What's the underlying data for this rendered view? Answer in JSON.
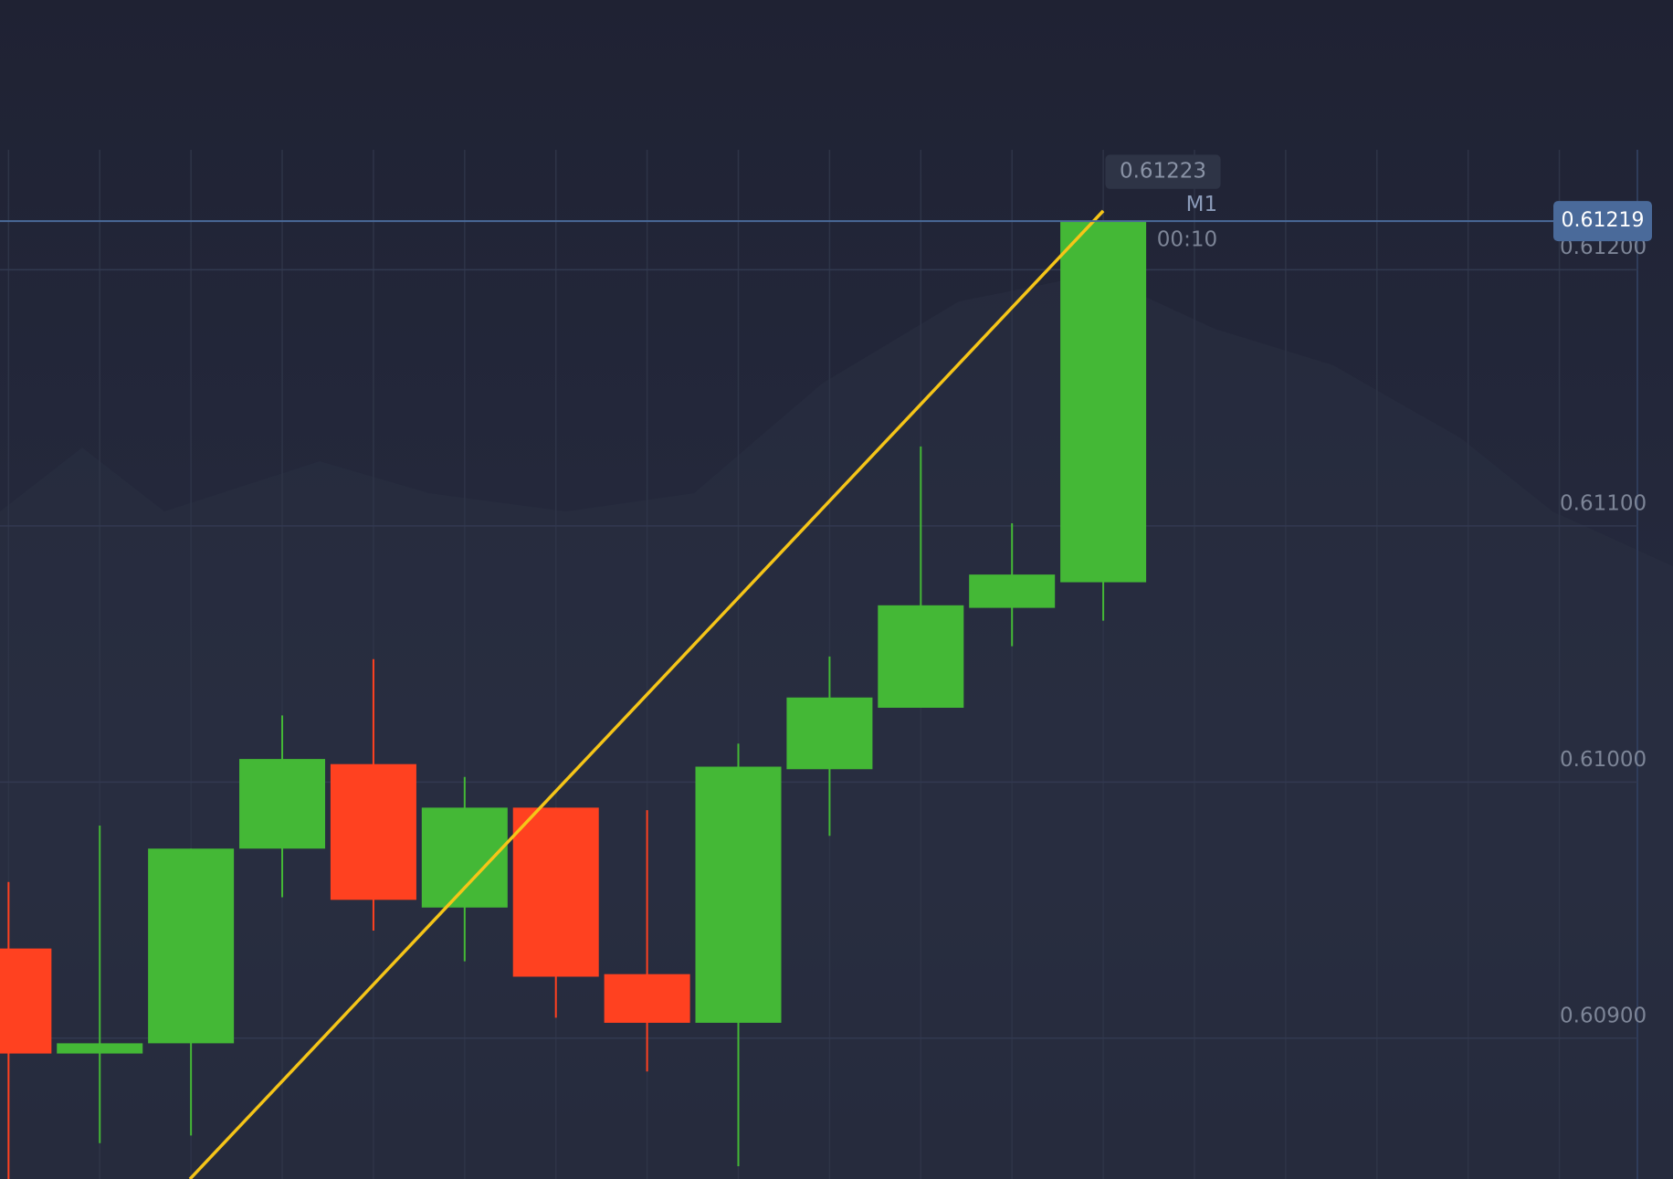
{
  "chart_data": {
    "type": "candlestick",
    "up_color": "#44b836",
    "down_color": "#ff4120",
    "open": [
      0.60935,
      0.60894,
      0.60898,
      0.60974,
      0.61007,
      0.60951,
      0.6099,
      0.60925,
      0.60906,
      0.61005,
      0.61029,
      0.61068,
      0.61078
    ],
    "high": [
      0.60961,
      0.60983,
      0.60974,
      0.61026,
      0.61048,
      0.61002,
      0.6099,
      0.60989,
      0.61015,
      0.61049,
      0.61131,
      0.61101,
      0.61219
    ],
    "low": [
      0.6084,
      0.60859,
      0.60862,
      0.60955,
      0.60942,
      0.6093,
      0.60908,
      0.60887,
      0.6085,
      0.60979,
      0.61029,
      0.61053,
      0.61063
    ],
    "close": [
      0.60894,
      0.60898,
      0.60974,
      0.61009,
      0.60954,
      0.6099,
      0.60924,
      0.60906,
      0.61006,
      0.61033,
      0.61069,
      0.61081,
      0.61219
    ],
    "ylim": [
      0.60845,
      0.61247
    ],
    "yticks": [
      {
        "value": 0.609,
        "label": "0.60900"
      },
      {
        "value": 0.61,
        "label": "0.61000"
      },
      {
        "value": 0.611,
        "label": "0.61100"
      },
      {
        "value": 0.612,
        "label": "0.61200"
      }
    ],
    "grid": true,
    "current_price": {
      "value": 0.61219,
      "label": "0.61219"
    },
    "trendline": {
      "end": {
        "value": 0.61223,
        "label": "0.61223"
      },
      "color": "#f5c518"
    },
    "timeframe": "M1",
    "timer": "00:10"
  }
}
